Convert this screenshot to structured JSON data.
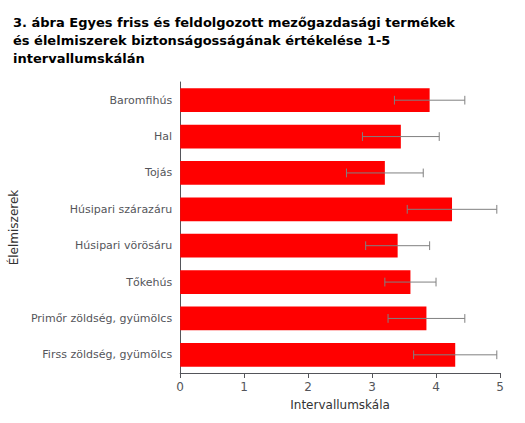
{
  "chart_data": {
    "type": "bar",
    "orientation": "horizontal",
    "title": "3. ábra Egyes friss és feldolgozott mezőgazdasági termékek\nés élelmiszerek biztonságosságának értékelése 1-5\nintervallumskálán",
    "categories": [
      "Baromfihús",
      "Hal",
      "Tojás",
      "Húsipari szárazáru",
      "Húsipari vörösáru",
      "Tőkehús",
      "Primőr zöldség, gyümölcs",
      "Firss zöldség, gyümölcs"
    ],
    "values": [
      3.9,
      3.45,
      3.2,
      4.25,
      3.4,
      3.6,
      3.85,
      4.3
    ],
    "errors": [
      0.55,
      0.6,
      0.6,
      0.7,
      0.5,
      0.4,
      0.6,
      0.65
    ],
    "color": "#FF0000",
    "xlabel": "Intervallumskála",
    "ylabel": "Élelmiszerek",
    "xlim": [
      0,
      5
    ],
    "xticks": [
      0,
      1,
      2,
      3,
      4,
      5
    ],
    "grid": false
  }
}
